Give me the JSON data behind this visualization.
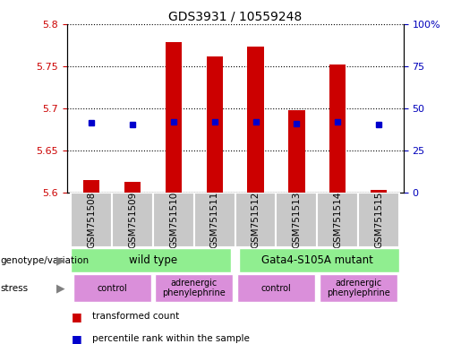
{
  "title": "GDS3931 / 10559248",
  "samples": [
    "GSM751508",
    "GSM751509",
    "GSM751510",
    "GSM751511",
    "GSM751512",
    "GSM751513",
    "GSM751514",
    "GSM751515"
  ],
  "bar_values": [
    5.615,
    5.613,
    5.779,
    5.762,
    5.773,
    5.698,
    5.752,
    5.603
  ],
  "bar_base": 5.6,
  "percentile_values": [
    5.683,
    5.681,
    5.684,
    5.684,
    5.684,
    5.682,
    5.684,
    5.681
  ],
  "ylim_left": [
    5.6,
    5.8
  ],
  "ylim_right": [
    0,
    100
  ],
  "yticks_left": [
    5.6,
    5.65,
    5.7,
    5.75,
    5.8
  ],
  "yticks_right": [
    0,
    25,
    50,
    75,
    100
  ],
  "bar_color": "#cc0000",
  "percentile_color": "#0000cc",
  "bar_width": 0.4,
  "legend_items": [
    {
      "label": "transformed count",
      "color": "#cc0000"
    },
    {
      "label": "percentile rank within the sample",
      "color": "#0000cc"
    }
  ],
  "genotype_label": "genotype/variation",
  "stress_label": "stress",
  "bg_color": "#ffffff",
  "tick_label_color_left": "#cc0000",
  "tick_label_color_right": "#0000bb",
  "col_bg_color": "#c8c8c8",
  "geno_color": "#90ee90",
  "stress_color": "#da8fda",
  "xlim": [
    -0.6,
    7.6
  ]
}
